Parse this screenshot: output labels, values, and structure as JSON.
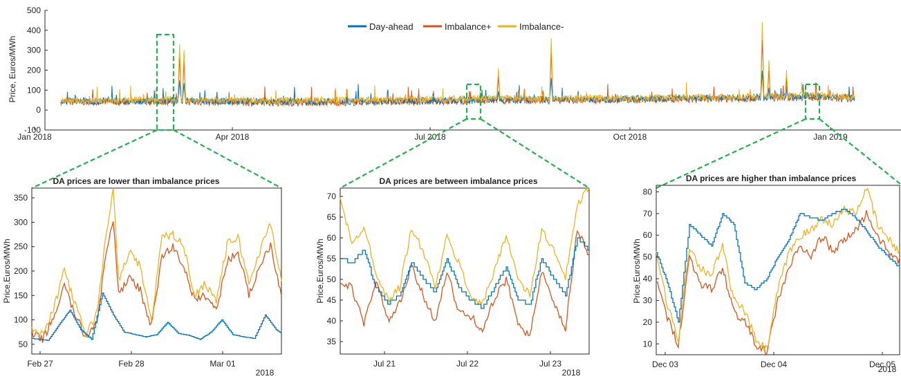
{
  "colors": {
    "day_ahead": "#0072BD",
    "imbalance_plus": "#D95319",
    "imbalance_minus": "#EDB120",
    "zoom_box": "#22b14c"
  },
  "chart_data": [
    {
      "type": "line",
      "ylabel": "Price, Euros/MWh",
      "ylim": [
        -100,
        500
      ],
      "yticks": [
        "500",
        "400",
        "300",
        "200",
        "100",
        "0",
        "-100"
      ],
      "xticks": [
        "Jan 2018",
        "Apr 2018",
        "Jul 2018",
        "Oct 2018",
        "Jan 2019"
      ],
      "legend_position": "top-center",
      "series": [
        {
          "name": "Day-ahead",
          "color": "#0072BD",
          "x": [
            1,
            50,
            100,
            150,
            200,
            250,
            300,
            340,
            362
          ],
          "y": [
            45,
            47,
            42,
            45,
            52,
            55,
            60,
            70,
            60
          ]
        },
        {
          "name": "Imbalance+",
          "color": "#D95319",
          "x": [
            1,
            50,
            100,
            150,
            200,
            250,
            300,
            340,
            362
          ],
          "y": [
            40,
            42,
            36,
            40,
            45,
            50,
            55,
            65,
            55
          ]
        },
        {
          "name": "Imbalance-",
          "color": "#EDB120",
          "x": [
            1,
            50,
            100,
            150,
            200,
            250,
            300,
            340,
            362
          ],
          "y": [
            48,
            52,
            47,
            52,
            58,
            60,
            65,
            75,
            65
          ]
        }
      ],
      "spikes": [
        {
          "day": 55,
          "value": 330
        },
        {
          "day": 57,
          "value": 300
        },
        {
          "day": 200,
          "value": 210
        },
        {
          "day": 224,
          "value": 360
        },
        {
          "day": 320,
          "value": 440
        },
        {
          "day": 323,
          "value": 250
        },
        {
          "day": 331,
          "value": 200
        }
      ]
    },
    {
      "type": "line",
      "title": "DA prices are lower than imbalance prices",
      "ylabel": "Price,Euros/MWh",
      "ylim": [
        30,
        370
      ],
      "yticks": [
        "350",
        "300",
        "250",
        "200",
        "150",
        "100",
        "50"
      ],
      "xticks": [
        "Feb 27",
        "Feb 28",
        "Mar 01"
      ],
      "xsuffix": "2018",
      "series": [
        {
          "name": "Day-ahead",
          "x": [
            0,
            6,
            10,
            14,
            18,
            22,
            26,
            30,
            34,
            38,
            42,
            46,
            50,
            54,
            58,
            62,
            66,
            70,
            74,
            78,
            82,
            86,
            90,
            92
          ],
          "y": [
            62,
            58,
            90,
            120,
            80,
            60,
            155,
            110,
            75,
            70,
            65,
            70,
            95,
            72,
            68,
            60,
            75,
            100,
            70,
            65,
            62,
            110,
            80,
            72
          ]
        },
        {
          "name": "Imbalance+",
          "x": [
            0,
            4,
            8,
            12,
            16,
            20,
            24,
            28,
            30,
            32,
            36,
            40,
            44,
            48,
            52,
            56,
            60,
            64,
            68,
            72,
            76,
            80,
            84,
            88,
            92
          ],
          "y": [
            72,
            60,
            105,
            170,
            110,
            62,
            100,
            255,
            300,
            150,
            190,
            160,
            85,
            230,
            250,
            210,
            140,
            150,
            120,
            220,
            240,
            150,
            210,
            255,
            150
          ]
        },
        {
          "name": "Imbalance-",
          "x": [
            0,
            4,
            8,
            12,
            16,
            20,
            24,
            28,
            30,
            32,
            36,
            40,
            44,
            48,
            52,
            56,
            60,
            64,
            68,
            72,
            76,
            80,
            84,
            88,
            92
          ],
          "y": [
            85,
            70,
            120,
            205,
            130,
            70,
            115,
            300,
            365,
            180,
            240,
            210,
            95,
            270,
            275,
            250,
            150,
            175,
            140,
            255,
            270,
            175,
            240,
            300,
            180
          ]
        }
      ]
    },
    {
      "type": "line",
      "title": "DA prices are between imbalance prices",
      "ylabel": "Price,Euros/MWh",
      "ylim": [
        32,
        72
      ],
      "yticks": [
        "70",
        "65",
        "60",
        "55",
        "50",
        "45",
        "40",
        "35"
      ],
      "xticks": [
        "Jul 21",
        "Jul 22",
        "Jul 23"
      ],
      "xsuffix": "2018",
      "series": [
        {
          "name": "Day-ahead",
          "x": [
            0,
            4,
            8,
            12,
            16,
            20,
            24,
            28,
            32,
            36,
            40,
            44,
            48,
            52,
            56,
            60,
            64,
            68,
            72,
            76,
            80,
            84
          ],
          "y": [
            55,
            54,
            57,
            48,
            44,
            46,
            54,
            50,
            47,
            55,
            48,
            45,
            43,
            48,
            53,
            45,
            44,
            55,
            50,
            46,
            60,
            57
          ]
        },
        {
          "name": "Imbalance+",
          "x": [
            0,
            4,
            8,
            12,
            16,
            20,
            24,
            28,
            32,
            36,
            40,
            44,
            48,
            52,
            56,
            60,
            64,
            68,
            72,
            76,
            80,
            84
          ],
          "y": [
            49,
            48,
            39,
            50,
            40,
            44,
            53,
            46,
            40,
            52,
            42,
            41,
            38,
            45,
            50,
            40,
            36,
            52,
            44,
            38,
            62,
            56
          ]
        },
        {
          "name": "Imbalance-",
          "x": [
            0,
            4,
            8,
            12,
            16,
            20,
            24,
            28,
            32,
            36,
            40,
            44,
            48,
            52,
            56,
            60,
            64,
            68,
            72,
            76,
            80,
            84
          ],
          "y": [
            70,
            58,
            63,
            52,
            45,
            48,
            62,
            57,
            48,
            60,
            54,
            46,
            44,
            52,
            61,
            50,
            46,
            62,
            57,
            50,
            68,
            72
          ]
        }
      ]
    },
    {
      "type": "line",
      "title": "DA prices are higher than imbalance prices",
      "ylabel": "Price,Euros/MWh",
      "ylim": [
        5,
        83
      ],
      "yticks": [
        "80",
        "70",
        "60",
        "50",
        "40",
        "30",
        "20",
        "10"
      ],
      "xticks": [
        "Dec 03",
        "Dec 04",
        "Dec 05"
      ],
      "xsuffix": "2018",
      "series": [
        {
          "name": "Day-ahead",
          "x": [
            0,
            4,
            8,
            12,
            16,
            20,
            24,
            28,
            32,
            36,
            40,
            44,
            48,
            52,
            56,
            60,
            64,
            68,
            72,
            76,
            80,
            84,
            88
          ],
          "y": [
            52,
            38,
            20,
            65,
            60,
            55,
            70,
            65,
            38,
            35,
            40,
            50,
            58,
            70,
            68,
            67,
            70,
            72,
            68,
            62,
            55,
            50,
            45
          ]
        },
        {
          "name": "Imbalance+",
          "x": [
            0,
            4,
            8,
            12,
            16,
            20,
            24,
            28,
            32,
            36,
            40,
            44,
            48,
            52,
            56,
            60,
            64,
            68,
            72,
            76,
            80,
            84,
            88
          ],
          "y": [
            40,
            22,
            10,
            50,
            38,
            35,
            45,
            25,
            20,
            10,
            6,
            30,
            45,
            55,
            50,
            60,
            52,
            58,
            62,
            70,
            60,
            52,
            48
          ]
        },
        {
          "name": "Imbalance-",
          "x": [
            0,
            4,
            8,
            12,
            16,
            20,
            24,
            28,
            32,
            36,
            40,
            44,
            48,
            52,
            56,
            60,
            64,
            68,
            72,
            76,
            80,
            84,
            88
          ],
          "y": [
            52,
            28,
            12,
            55,
            45,
            42,
            55,
            30,
            25,
            12,
            7,
            35,
            52,
            60,
            62,
            68,
            65,
            72,
            70,
            82,
            65,
            58,
            52
          ]
        }
      ]
    }
  ]
}
